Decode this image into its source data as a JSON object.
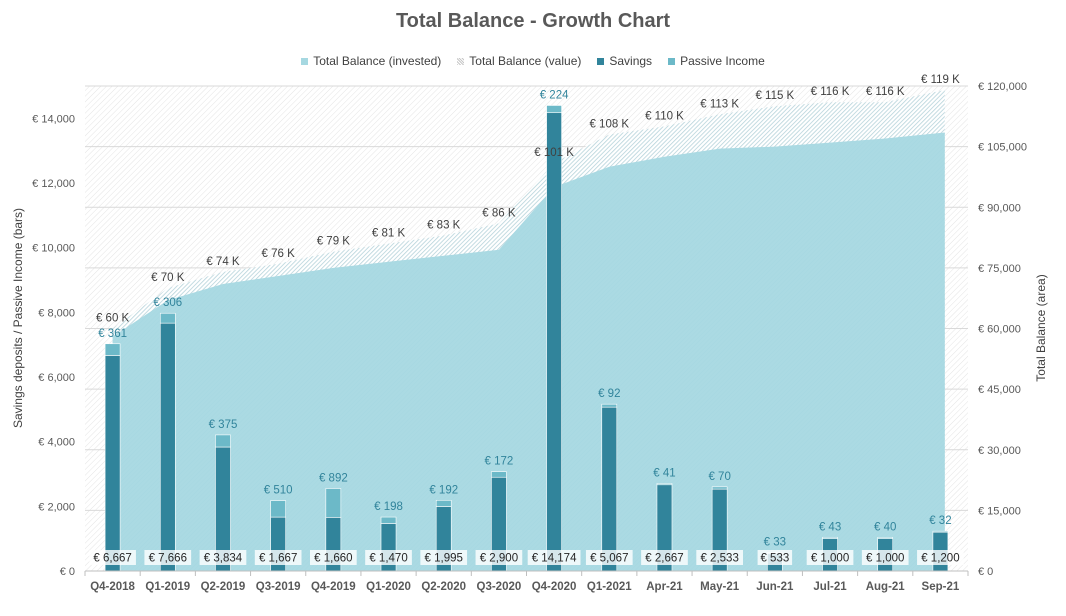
{
  "chart_data": {
    "type": "bar+area",
    "title": "Total Balance - Growth Chart",
    "legend": [
      {
        "label": "Total Balance (invested)",
        "color": "#a6d8e1"
      },
      {
        "label": "Total Balance (value)",
        "color": "#c8c8c8"
      },
      {
        "label": "Savings",
        "color": "#31849b"
      },
      {
        "label": "Passive Income",
        "color": "#6cb9c8"
      }
    ],
    "categories": [
      "Q4-2018",
      "Q1-2019",
      "Q2-2019",
      "Q3-2019",
      "Q4-2019",
      "Q1-2020",
      "Q2-2020",
      "Q3-2020",
      "Q4-2020",
      "Q1-2021",
      "Apr-21",
      "May-21",
      "Jun-21",
      "Jul-21",
      "Aug-21",
      "Sep-21"
    ],
    "savings": [
      6667,
      7666,
      3834,
      1667,
      1660,
      1470,
      1995,
      2900,
      14174,
      5067,
      2667,
      2533,
      533,
      1000,
      1000,
      1200
    ],
    "savings_labels": [
      "€ 6,667",
      "€ 7,666",
      "€ 3,834",
      "€ 1,667",
      "€ 1,660",
      "€ 1,470",
      "€ 1,995",
      "€ 2,900",
      "€ 14,174",
      "€ 5,067",
      "€ 2,667",
      "€ 2,533",
      "€ 533",
      "€ 1,000",
      "€ 1,000",
      "€ 1,200"
    ],
    "passive_income": [
      361,
      306,
      375,
      510,
      892,
      198,
      192,
      172,
      224,
      92,
      41,
      70,
      33,
      43,
      40,
      32
    ],
    "passive_labels": [
      "€ 361",
      "€ 306",
      "€ 375",
      "€ 510",
      "€ 892",
      "€ 198",
      "€ 192",
      "€ 172",
      "€ 224",
      "€ 92",
      "€ 41",
      "€ 70",
      "€ 33",
      "€ 43",
      "€ 40",
      "€ 32"
    ],
    "total_value": [
      60000,
      70000,
      74000,
      76000,
      79000,
      81000,
      83000,
      86000,
      101000,
      108000,
      110000,
      113000,
      115000,
      116000,
      116000,
      119000
    ],
    "total_value_labels": [
      "€ 60 K",
      "€ 70 K",
      "€ 74 K",
      "€ 76 K",
      "€ 79 K",
      "€ 81 K",
      "€ 83 K",
      "€ 86 K",
      "€ 101 K",
      "€ 108 K",
      "€ 110 K",
      "€ 113 K",
      "€ 115 K",
      "€ 116 K",
      "€ 116 K",
      "€ 119 K"
    ],
    "total_invested": [
      58000,
      67000,
      71000,
      73000,
      75000,
      76500,
      78000,
      79500,
      95000,
      100000,
      102500,
      104500,
      105000,
      106000,
      107000,
      108500
    ],
    "ylabel_left": "Savings deposits / Passive Income (bars)",
    "ylabel_right": "Total Balance (area)",
    "ylim_left": [
      0,
      15000
    ],
    "ylim_right": [
      0,
      120000
    ],
    "yticks_left": [
      "€ 0",
      "€ 2,000",
      "€ 4,000",
      "€ 6,000",
      "€ 8,000",
      "€ 10,000",
      "€ 12,000",
      "€ 14,000"
    ],
    "yticks_right": [
      "€ 0",
      "€ 15,000",
      "€ 30,000",
      "€ 45,000",
      "€ 60,000",
      "€ 75,000",
      "€ 90,000",
      "€ 105,000",
      "€ 120,000"
    ],
    "grid": true
  }
}
